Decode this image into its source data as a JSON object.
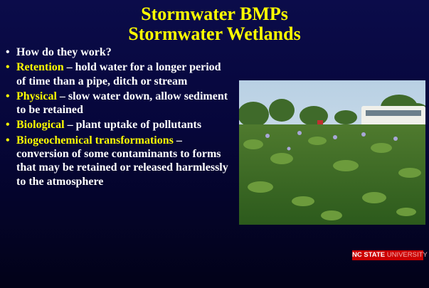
{
  "title": [
    "Stormwater BMPs",
    "Stormwater Wetlands"
  ],
  "bullets": [
    {
      "text": "How do they work?"
    },
    {
      "term": "Retention",
      "text": "– hold water for a longer period of time than a pipe, ditch or stream"
    },
    {
      "term": "Physical",
      "text": "– slow water down, allow sediment to be retained"
    },
    {
      "term": "Biological",
      "text": "– plant uptake of pollutants"
    },
    {
      "term": "Biogeochemical transformations",
      "text": "– conversion of some contaminants to forms that may be retained or released harmlessly to the atmosphere"
    }
  ],
  "logo": {
    "primary": "NC STATE",
    "secondary": "UNIVERSITY"
  }
}
